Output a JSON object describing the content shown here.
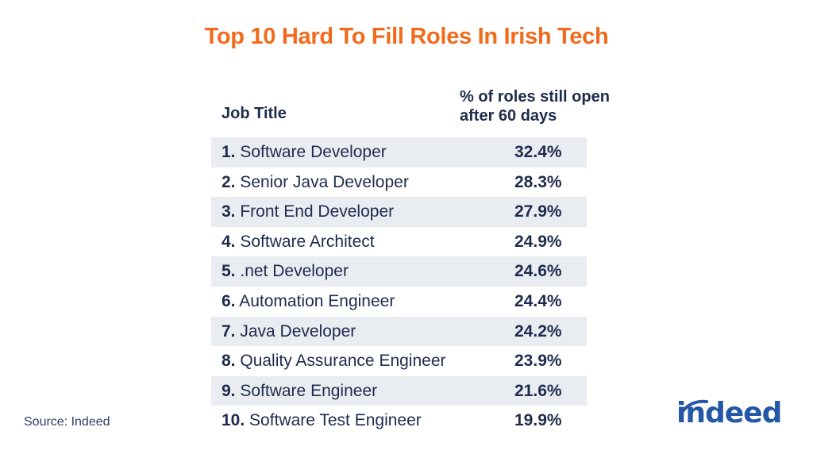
{
  "title": "Top 10 Hard To Fill Roles In Irish Tech",
  "headers": {
    "job_title": "Job Title",
    "pct_line1": "% of roles still open",
    "pct_line2": "after 60 days"
  },
  "rows": [
    {
      "num": "1.",
      "title": "Software Developer",
      "value": "32.4%"
    },
    {
      "num": "2.",
      "title": "Senior Java Developer",
      "value": "28.3%"
    },
    {
      "num": "3.",
      "title": "Front End Developer",
      "value": "27.9%"
    },
    {
      "num": "4.",
      "title": "Software Architect",
      "value": "24.9%"
    },
    {
      "num": "5.",
      "title": ".net Developer",
      "value": "24.6%"
    },
    {
      "num": "6.",
      "title": "Automation Engineer",
      "value": "24.4%"
    },
    {
      "num": "7.",
      "title": "Java Developer",
      "value": "24.2%"
    },
    {
      "num": "8.",
      "title": "Quality Assurance Engineer",
      "value": "23.9%"
    },
    {
      "num": "9.",
      "title": "Software Engineer",
      "value": "21.6%"
    },
    {
      "num": "10.",
      "title": "Software Test Engineer",
      "value": "19.9%"
    }
  ],
  "source": "Source: Indeed",
  "logo": {
    "text": "indeed",
    "color": "#2557a7"
  },
  "colors": {
    "title": "#f26a1b",
    "text": "#1f2b4d",
    "row_shade": "#e9ecf1"
  },
  "chart_data": {
    "type": "table",
    "title": "Top 10 Hard To Fill Roles In Irish Tech",
    "columns": [
      "Job Title",
      "% of roles still open after 60 days"
    ],
    "categories": [
      "Software Developer",
      "Senior Java Developer",
      "Front End Developer",
      "Software Architect",
      ".net Developer",
      "Automation Engineer",
      "Java Developer",
      "Quality Assurance Engineer",
      "Software Engineer",
      "Software Test Engineer"
    ],
    "values": [
      32.4,
      28.3,
      27.9,
      24.9,
      24.6,
      24.4,
      24.2,
      23.9,
      21.6,
      19.9
    ],
    "unit": "%"
  }
}
